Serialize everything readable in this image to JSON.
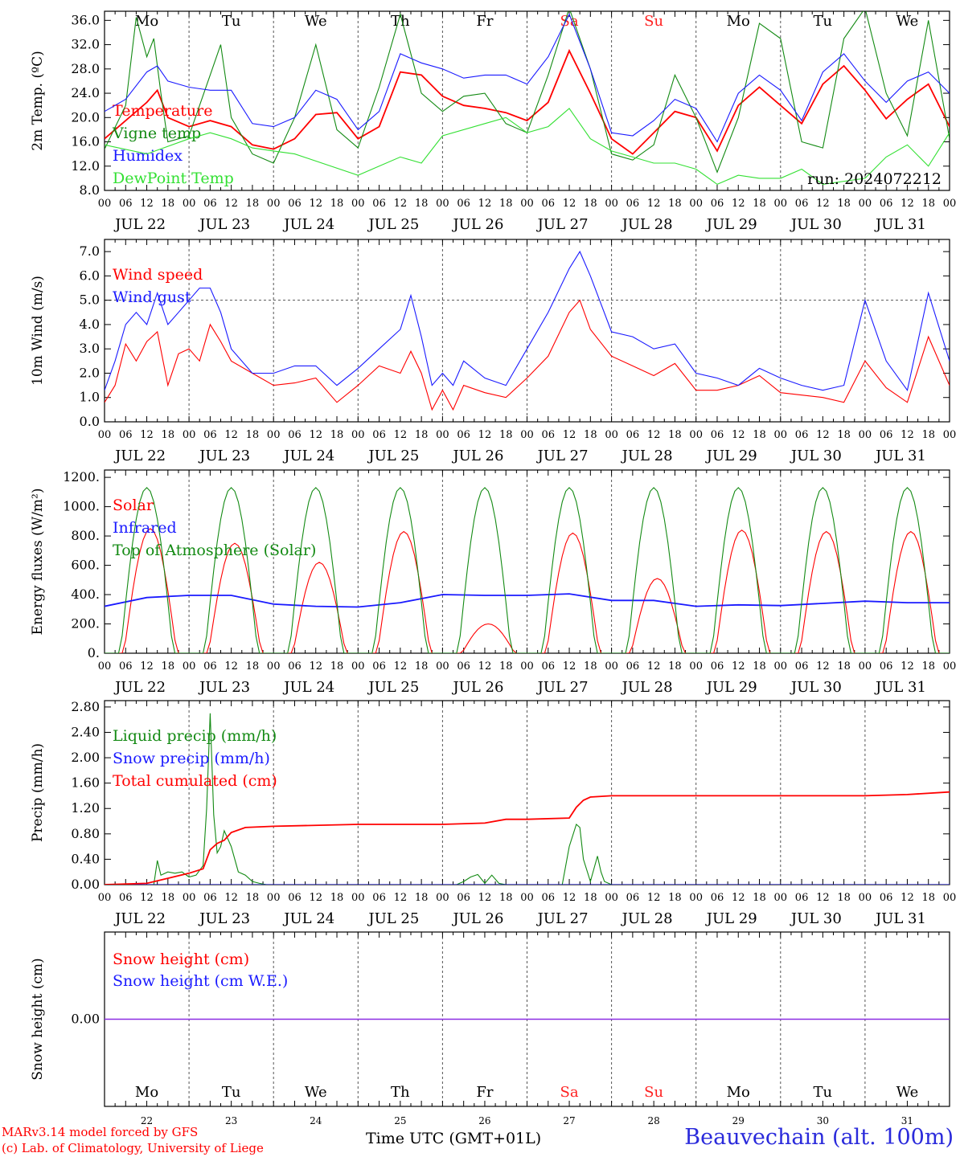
{
  "colors": {
    "red": "#ff0000",
    "green": "#138a13",
    "blue": "#1a1aff",
    "lightgreen": "#33e033",
    "purple": "#8a2be2",
    "weekend": "#ff2020",
    "weekday": "#000000"
  },
  "days": [
    "Mo",
    "Tu",
    "We",
    "Th",
    "Fr",
    "Sa",
    "Su",
    "Mo",
    "Tu",
    "We"
  ],
  "weekend_days": [
    "Sa",
    "Su"
  ],
  "dates": [
    "JUL 22",
    "JUL 23",
    "JUL 24",
    "JUL 25",
    "JUL 26",
    "JUL 27",
    "JUL 28",
    "JUL 29",
    "JUL 30",
    "JUL 31"
  ],
  "day_numbers": [
    "22",
    "23",
    "24",
    "25",
    "26",
    "27",
    "28",
    "29",
    "30",
    "31"
  ],
  "hour_ticks": [
    "00",
    "06",
    "12",
    "18"
  ],
  "hour_end": "00",
  "footer": {
    "credit_line1": "MARv3.14 model forced by GFS",
    "credit_line2": "(c) Lab. of Climatology, University of Liege",
    "xlabel": "Time UTC (GMT+01L)",
    "station": "Beauvechain (alt. 100m)"
  },
  "chart_data": [
    {
      "type": "line",
      "ylabel": "2m Temp. (ºC)",
      "ylim": [
        8,
        37.5
      ],
      "yticks": [
        "8.0",
        "12.0",
        "16.0",
        "20.0",
        "24.0",
        "28.0",
        "32.0",
        "36.0"
      ],
      "annotation": "run: 2024072212",
      "series": [
        {
          "name": "Temperature",
          "color": "red",
          "x": [
            0,
            6,
            12,
            15,
            18,
            24,
            30,
            36,
            42,
            48,
            54,
            60,
            66,
            72,
            78,
            84,
            90,
            96,
            102,
            108,
            114,
            120,
            126,
            132,
            138,
            144,
            150,
            156,
            162,
            168,
            174,
            180,
            186,
            192,
            198,
            204,
            210,
            216,
            222,
            228,
            234,
            240
          ],
          "values": [
            16.5,
            19.5,
            22.5,
            24.5,
            20,
            18.5,
            19.5,
            18.5,
            15.5,
            14.8,
            16.5,
            20.5,
            20.8,
            16.5,
            18.5,
            27.5,
            27,
            23.5,
            22,
            21.5,
            20.8,
            19.5,
            22.5,
            31,
            24,
            16.5,
            14,
            17.5,
            21,
            20,
            14.5,
            22,
            25,
            22,
            19,
            25.5,
            28.5,
            24.5,
            19.8,
            23,
            25.5,
            18.5
          ]
        },
        {
          "name": "Vigne temp",
          "color": "green",
          "x": [
            0,
            6,
            9,
            12,
            14,
            16,
            18,
            24,
            30,
            33,
            36,
            42,
            48,
            54,
            60,
            66,
            72,
            78,
            84,
            90,
            96,
            102,
            108,
            114,
            120,
            126,
            132,
            138,
            144,
            150,
            156,
            162,
            168,
            174,
            180,
            186,
            192,
            198,
            204,
            210,
            216,
            222,
            228,
            234,
            240
          ],
          "values": [
            14.8,
            22,
            36.5,
            30,
            33,
            24,
            16,
            17,
            27,
            32,
            20,
            14,
            12.5,
            20,
            32,
            18,
            15,
            25,
            37,
            24,
            21,
            23.5,
            24,
            19,
            17.5,
            27,
            38,
            28,
            14,
            13,
            15.5,
            27,
            20,
            11,
            20,
            35.5,
            33,
            16,
            15,
            33,
            38,
            24,
            17,
            36,
            16.5
          ]
        },
        {
          "name": "Humidex",
          "color": "blue",
          "x": [
            0,
            6,
            12,
            15,
            18,
            24,
            30,
            36,
            42,
            48,
            54,
            60,
            66,
            72,
            78,
            84,
            90,
            96,
            102,
            108,
            114,
            120,
            126,
            132,
            138,
            144,
            150,
            156,
            162,
            168,
            174,
            180,
            186,
            192,
            198,
            204,
            210,
            216,
            222,
            228,
            234,
            240
          ],
          "values": [
            21,
            23,
            27.5,
            28.5,
            26,
            25,
            24.5,
            24.5,
            19,
            18.5,
            20,
            24.5,
            23,
            18,
            21,
            30.5,
            29,
            28,
            26.5,
            27,
            27,
            25.5,
            30,
            37,
            28,
            17.5,
            17,
            19.5,
            23,
            21.5,
            16,
            24,
            27,
            24.5,
            19.5,
            27.5,
            30.5,
            26,
            22.5,
            26,
            27.5,
            24
          ]
        },
        {
          "name": "DewPoint Temp",
          "color": "lightgreen",
          "x": [
            0,
            12,
            24,
            30,
            36,
            42,
            48,
            54,
            72,
            78,
            84,
            90,
            96,
            108,
            114,
            120,
            126,
            132,
            138,
            144,
            150,
            156,
            162,
            168,
            174,
            180,
            186,
            192,
            198,
            204,
            216,
            222,
            228,
            234,
            240
          ],
          "values": [
            15.5,
            14,
            16.5,
            17.5,
            16.5,
            15,
            14.5,
            14,
            10.5,
            12,
            13.5,
            12.5,
            17,
            19,
            20,
            17.5,
            18.5,
            21.5,
            16.5,
            14.5,
            13.5,
            12.5,
            12.5,
            11.5,
            9,
            10.5,
            10,
            10,
            11.5,
            9,
            10,
            13.5,
            15.5,
            12,
            17.5
          ]
        }
      ]
    },
    {
      "type": "line",
      "ylabel": "10m Wind (m/s)",
      "ylim": [
        0,
        7.5
      ],
      "yticks": [
        "0.0",
        "1.0",
        "2.0",
        "3.0",
        "4.0",
        "5.0",
        "6.0",
        "7.0"
      ],
      "ref_line": 5.0,
      "series": [
        {
          "name": "Wind speed",
          "color": "red",
          "x": [
            0,
            3,
            6,
            9,
            12,
            15,
            18,
            21,
            24,
            27,
            30,
            33,
            36,
            42,
            48,
            54,
            60,
            66,
            72,
            78,
            84,
            87,
            90,
            93,
            96,
            99,
            102,
            108,
            114,
            120,
            126,
            132,
            135,
            138,
            144,
            150,
            156,
            162,
            168,
            174,
            180,
            186,
            192,
            198,
            204,
            210,
            216,
            222,
            228,
            234,
            240
          ],
          "values": [
            0.8,
            1.5,
            3.2,
            2.5,
            3.3,
            3.7,
            1.5,
            2.8,
            3,
            2.5,
            4,
            3.3,
            2.5,
            2,
            1.5,
            1.6,
            1.8,
            0.8,
            1.5,
            2.3,
            2,
            2.9,
            2,
            0.5,
            1.3,
            0.5,
            1.5,
            1.2,
            1,
            1.8,
            2.7,
            4.5,
            5,
            3.8,
            2.7,
            2.3,
            1.9,
            2.4,
            1.3,
            1.3,
            1.5,
            1.9,
            1.2,
            1.1,
            1,
            0.8,
            2.5,
            1.4,
            0.8,
            3.5,
            1.5
          ]
        },
        {
          "name": "Wind gust",
          "color": "blue",
          "x": [
            0,
            3,
            6,
            9,
            12,
            15,
            18,
            21,
            24,
            27,
            30,
            33,
            36,
            42,
            48,
            54,
            60,
            66,
            72,
            78,
            84,
            87,
            90,
            93,
            96,
            99,
            102,
            108,
            114,
            120,
            126,
            132,
            135,
            138,
            144,
            150,
            156,
            162,
            168,
            174,
            180,
            186,
            192,
            198,
            204,
            210,
            216,
            222,
            228,
            234,
            240
          ],
          "values": [
            1.3,
            2.5,
            4,
            4.5,
            4,
            5.3,
            4,
            4.5,
            5,
            5.5,
            5.5,
            4.5,
            3,
            2,
            2,
            2.3,
            2.3,
            1.5,
            2.2,
            3,
            3.8,
            5.2,
            3.5,
            1.5,
            2,
            1.5,
            2.5,
            1.8,
            1.5,
            3,
            4.5,
            6.3,
            7,
            6,
            3.7,
            3.5,
            3,
            3.2,
            2,
            1.8,
            1.5,
            2.2,
            1.8,
            1.5,
            1.3,
            1.5,
            5,
            2.5,
            1.3,
            5.3,
            2.5
          ]
        }
      ]
    },
    {
      "type": "line",
      "ylabel": "Energy fluxes (W/m²)",
      "ylim": [
        0,
        1250
      ],
      "yticks": [
        "0.",
        "200.",
        "400.",
        "600.",
        "800.",
        "1000.",
        "1200."
      ],
      "series": [
        {
          "name": "Solar",
          "color": "red",
          "peaks": [
            [
              13,
              850
            ],
            [
              37,
              750
            ],
            [
              61,
              620
            ],
            [
              85,
              830
            ],
            [
              109,
              200
            ],
            [
              133,
              820
            ],
            [
              157,
              510
            ],
            [
              181,
              840
            ],
            [
              205,
              830
            ],
            [
              229,
              830
            ]
          ]
        },
        {
          "name": "Infrared",
          "color": "blue",
          "x": [
            0,
            12,
            24,
            36,
            48,
            60,
            72,
            84,
            96,
            108,
            120,
            132,
            144,
            156,
            168,
            180,
            192,
            204,
            216,
            228,
            240
          ],
          "values": [
            320,
            380,
            395,
            395,
            335,
            320,
            315,
            345,
            400,
            395,
            395,
            405,
            360,
            360,
            320,
            330,
            325,
            340,
            355,
            345,
            345
          ]
        },
        {
          "name": "Top of Atmosphere (Solar)",
          "color": "green",
          "peaks": [
            [
              12,
              1130
            ],
            [
              36,
              1130
            ],
            [
              60,
              1130
            ],
            [
              84,
              1130
            ],
            [
              108,
              1130
            ],
            [
              132,
              1130
            ],
            [
              156,
              1130
            ],
            [
              180,
              1130
            ],
            [
              204,
              1130
            ],
            [
              228,
              1130
            ]
          ]
        }
      ]
    },
    {
      "type": "line",
      "ylabel": "Precip (mm/h)",
      "ylim": [
        0,
        2.9
      ],
      "yticks": [
        "0.00",
        "0.40",
        "0.80",
        "1.20",
        "1.60",
        "2.00",
        "2.40",
        "2.80"
      ],
      "series": [
        {
          "name": "Liquid precip (mm/h)",
          "color": "green",
          "x": [
            0,
            14,
            15,
            16,
            18,
            20,
            22,
            24,
            26,
            28,
            29,
            30,
            31,
            32,
            33,
            34,
            36,
            38,
            40,
            42,
            44,
            46,
            48,
            100,
            102,
            104,
            106,
            108,
            110,
            112,
            114,
            116,
            118,
            130,
            132,
            134,
            135,
            136,
            138,
            140,
            141,
            142,
            144,
            146,
            240
          ],
          "values": [
            0,
            0,
            0.38,
            0.15,
            0.2,
            0.18,
            0.2,
            0.12,
            0.15,
            0.3,
            1.2,
            2.7,
            1.1,
            0.5,
            0.6,
            0.85,
            0.6,
            0.2,
            0.15,
            0.05,
            0.02,
            0,
            0,
            0,
            0.05,
            0.12,
            0.16,
            0.02,
            0.15,
            0.02,
            0,
            0,
            0,
            0,
            0.6,
            0.95,
            0.9,
            0.4,
            0.05,
            0.45,
            0.2,
            0.05,
            0,
            0,
            0
          ]
        },
        {
          "name": "Snow precip (mm/h)",
          "color": "blue",
          "x": [
            0,
            240
          ],
          "values": [
            0,
            0
          ]
        },
        {
          "name": "Total cumulated (cm)",
          "color": "red",
          "x": [
            0,
            12,
            18,
            24,
            28,
            30,
            32,
            34,
            36,
            40,
            48,
            72,
            96,
            108,
            114,
            120,
            132,
            134,
            136,
            138,
            144,
            168,
            192,
            216,
            228,
            240
          ],
          "values": [
            0,
            0.02,
            0.1,
            0.18,
            0.25,
            0.55,
            0.65,
            0.7,
            0.82,
            0.9,
            0.92,
            0.95,
            0.95,
            0.97,
            1.03,
            1.03,
            1.05,
            1.22,
            1.33,
            1.38,
            1.4,
            1.4,
            1.4,
            1.4,
            1.42,
            1.46
          ]
        }
      ]
    },
    {
      "type": "line",
      "ylabel": "Snow height (cm)",
      "ylim": [
        -1,
        1
      ],
      "yticks": [
        "0.00"
      ],
      "series": [
        {
          "name": "Snow height (cm)",
          "color": "red",
          "x": [
            0,
            240
          ],
          "values": [
            0,
            0
          ]
        },
        {
          "name": "Snow height (cm W.E.)",
          "color": "blue",
          "x": [
            0,
            240
          ],
          "values": [
            0,
            0
          ]
        }
      ]
    }
  ]
}
